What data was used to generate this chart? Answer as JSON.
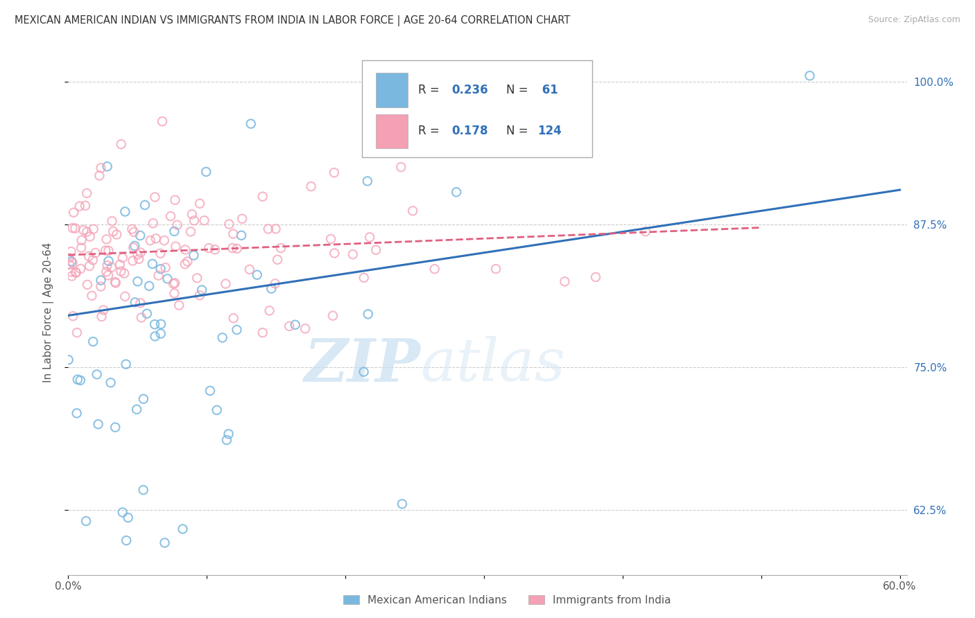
{
  "title": "MEXICAN AMERICAN INDIAN VS IMMIGRANTS FROM INDIA IN LABOR FORCE | AGE 20-64 CORRELATION CHART",
  "source": "Source: ZipAtlas.com",
  "ylabel": "In Labor Force | Age 20-64",
  "x_min": 0.0,
  "x_max": 0.605,
  "y_min": 0.568,
  "y_max": 1.028,
  "x_ticks": [
    0.0,
    0.1,
    0.2,
    0.3,
    0.4,
    0.5,
    0.6
  ],
  "x_tick_labels": [
    "0.0%",
    "",
    "",
    "",
    "",
    "",
    "60.0%"
  ],
  "y_ticks_right": [
    0.625,
    0.75,
    0.875,
    1.0
  ],
  "y_tick_labels_right": [
    "62.5%",
    "75.0%",
    "87.5%",
    "100.0%"
  ],
  "blue_R": 0.236,
  "blue_N": 61,
  "pink_R": 0.178,
  "pink_N": 124,
  "blue_color": "#7ab8e0",
  "pink_color": "#f4a0b5",
  "blue_line_color": "#3070b8",
  "pink_line_color": "#e06080",
  "watermark_zip": "ZIP",
  "watermark_atlas": "atlas",
  "legend_label_blue": "Mexican American Indians",
  "legend_label_pink": "Immigrants from India",
  "blue_line_x0": 0.0,
  "blue_line_y0": 0.795,
  "blue_line_x1": 0.6,
  "blue_line_y1": 0.905,
  "pink_line_x0": 0.0,
  "pink_line_x1": 0.5,
  "pink_line_y0": 0.848,
  "pink_line_y1": 0.872
}
